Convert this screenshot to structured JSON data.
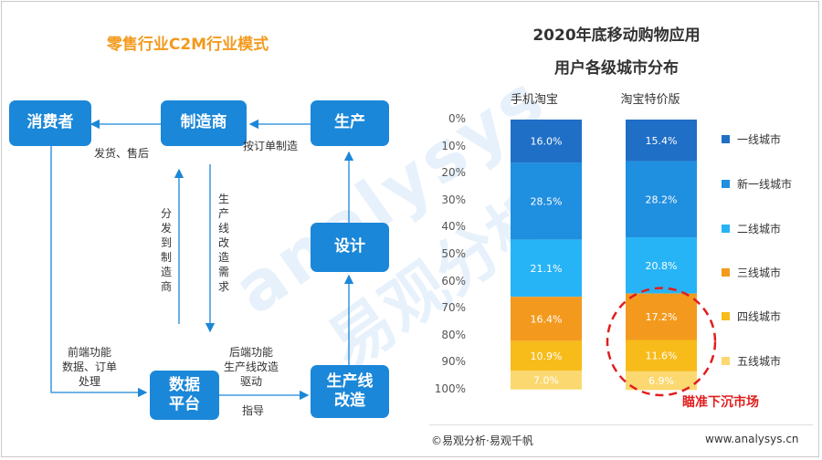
{
  "left": {
    "title": "零售行业C2M行业模式",
    "boxes": {
      "consumer": "消费者",
      "manufacturer": "制造商",
      "production": "生产",
      "design": "设计",
      "data_platform_line1": "数据",
      "data_platform_line2": "平台",
      "line_reform_line1": "生产线",
      "line_reform_line2": "改造"
    },
    "labels": {
      "ship_after_sales": "发货、售后",
      "order_manufacture": "按订单制造",
      "distribute_to_manufacturer": "分发到制造商",
      "line_reform_demand": "生产线改造需求",
      "frontend_line1": "前端功能",
      "frontend_line2": "数据、订单",
      "frontend_line3": "处理",
      "backend_line1": "后端功能",
      "backend_line2": "生产线改造",
      "backend_line3": "驱动",
      "guidance": "指导"
    }
  },
  "chart_data": {
    "type": "bar",
    "stacked": true,
    "orientation": "vertical",
    "title_line1": "2020年底移动购物应用",
    "title_line2": "用户各级城市分布",
    "categories": [
      "手机淘宝",
      "淘宝特价版"
    ],
    "y_ticks": [
      "0%",
      "10%",
      "20%",
      "30%",
      "40%",
      "50%",
      "60%",
      "70%",
      "80%",
      "90%",
      "100%"
    ],
    "ylim": [
      0,
      100
    ],
    "y_direction": "top-to-bottom",
    "legend_position": "right",
    "series": [
      {
        "name": "一线城市",
        "color": "#1f6fc6",
        "values": [
          16.0,
          15.4
        ],
        "labels": [
          "16.0%",
          "15.4%"
        ]
      },
      {
        "name": "新一线城市",
        "color": "#1f8fe0",
        "values": [
          28.5,
          28.2
        ],
        "labels": [
          "28.5%",
          "28.2%"
        ]
      },
      {
        "name": "二线城市",
        "color": "#27b4f6",
        "values": [
          21.1,
          20.8
        ],
        "labels": [
          "21.1%",
          "20.8%"
        ]
      },
      {
        "name": "三线城市",
        "color": "#f39a1e",
        "values": [
          16.4,
          17.2
        ],
        "labels": [
          "16.4%",
          "17.2%"
        ]
      },
      {
        "name": "四线城市",
        "color": "#f7bb1a",
        "values": [
          10.9,
          11.6
        ],
        "labels": [
          "10.9%",
          "11.6%"
        ]
      },
      {
        "name": "五线城市",
        "color": "#fbd870",
        "values": [
          7.0,
          6.9
        ],
        "labels": [
          "7.0%",
          "6.9%"
        ]
      }
    ],
    "annotation": "瞄准下沉市场"
  },
  "footer": {
    "source": "©易观分析·易观千帆",
    "site": "www.analysys.cn"
  },
  "watermark": {
    "latin": "analysys",
    "cjk": "易观分析"
  },
  "colors": {
    "box_blue": "#1b87d8",
    "title_orange": "#f39a1e",
    "callout_red": "#e01e1e"
  }
}
